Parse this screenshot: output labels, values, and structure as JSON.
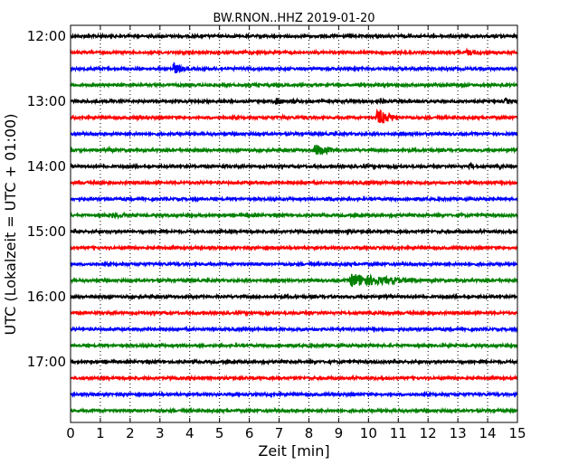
{
  "chart_data": {
    "type": "line",
    "title": "BW.RNON..HHZ 2019-01-20",
    "xlabel": "Zeit  [min]",
    "ylabel": "UTC (Lokalzeit = UTC + 01:00)",
    "xlim": [
      0,
      15
    ],
    "x_ticks": [
      "0",
      "1",
      "2",
      "3",
      "4",
      "5",
      "6",
      "7",
      "8",
      "9",
      "10",
      "11",
      "12",
      "13",
      "14",
      "15"
    ],
    "y_ticks": [
      "12:00",
      "13:00",
      "14:00",
      "15:00",
      "16:00",
      "17:00"
    ],
    "grid": "vertical dotted",
    "colors": [
      "#000000",
      "#ff0000",
      "#0000ff",
      "#008000"
    ],
    "series": [
      {
        "start": "12:00",
        "color": "#000000",
        "events": []
      },
      {
        "start": "12:15",
        "color": "#ff0000",
        "events": [
          {
            "t": 13.3,
            "amp": 3.5,
            "width": 0.6
          }
        ]
      },
      {
        "start": "12:30",
        "color": "#0000ff",
        "events": [
          {
            "t": 3.45,
            "amp": 8,
            "width": 0.25
          }
        ]
      },
      {
        "start": "12:45",
        "color": "#008000",
        "events": [
          {
            "t": 1.4,
            "amp": 2.5,
            "width": 0.3
          },
          {
            "t": 3.9,
            "amp": 2,
            "width": 0.3
          }
        ]
      },
      {
        "start": "13:00",
        "color": "#000000",
        "events": [
          {
            "t": 6.9,
            "amp": 5,
            "width": 0.3
          },
          {
            "t": 7.5,
            "amp": 3,
            "width": 0.3
          },
          {
            "t": 10.4,
            "amp": 3.5,
            "width": 0.3
          },
          {
            "t": 14.6,
            "amp": 4,
            "width": 0.2
          }
        ]
      },
      {
        "start": "13:15",
        "color": "#ff0000",
        "events": [
          {
            "t": 2.2,
            "amp": 3,
            "width": 0.2
          },
          {
            "t": 7.1,
            "amp": 3,
            "width": 0.3
          },
          {
            "t": 7.8,
            "amp": 3,
            "width": 0.2
          },
          {
            "t": 10.3,
            "amp": 10,
            "width": 0.45
          }
        ]
      },
      {
        "start": "13:30",
        "color": "#0000ff",
        "events": []
      },
      {
        "start": "13:45",
        "color": "#008000",
        "events": [
          {
            "t": 1.3,
            "amp": 3,
            "width": 0.2
          },
          {
            "t": 8.2,
            "amp": 7,
            "width": 0.6
          }
        ]
      },
      {
        "start": "14:00",
        "color": "#000000",
        "events": [
          {
            "t": 5.1,
            "amp": 2.5,
            "width": 0.3
          },
          {
            "t": 13.4,
            "amp": 4,
            "width": 0.2
          },
          {
            "t": 14.4,
            "amp": 3,
            "width": 0.2
          }
        ]
      },
      {
        "start": "14:15",
        "color": "#ff0000",
        "events": [
          {
            "t": 13.3,
            "amp": 3,
            "width": 0.5
          }
        ]
      },
      {
        "start": "14:30",
        "color": "#0000ff",
        "events": [
          {
            "t": 8.6,
            "amp": 3,
            "width": 0.6
          }
        ]
      },
      {
        "start": "14:45",
        "color": "#008000",
        "events": [
          {
            "t": 1.4,
            "amp": 3,
            "width": 1.2
          },
          {
            "t": 5.9,
            "amp": 3,
            "width": 0.3
          },
          {
            "t": 13.0,
            "amp": 2.5,
            "width": 0.3
          }
        ]
      },
      {
        "start": "15:00",
        "color": "#000000",
        "events": [
          {
            "t": 9.3,
            "amp": 3,
            "width": 0.2
          }
        ]
      },
      {
        "start": "15:15",
        "color": "#ff0000",
        "events": []
      },
      {
        "start": "15:30",
        "color": "#0000ff",
        "events": []
      },
      {
        "start": "15:45",
        "color": "#008000",
        "events": [
          {
            "t": 9.4,
            "amp": 8,
            "width": 1.6
          }
        ]
      },
      {
        "start": "16:00",
        "color": "#000000",
        "events": []
      },
      {
        "start": "16:15",
        "color": "#ff0000",
        "events": []
      },
      {
        "start": "16:30",
        "color": "#0000ff",
        "events": []
      },
      {
        "start": "16:45",
        "color": "#008000",
        "events": []
      },
      {
        "start": "17:00",
        "color": "#000000",
        "events": [
          {
            "t": 4.1,
            "amp": 2,
            "width": 0.2
          }
        ]
      },
      {
        "start": "17:15",
        "color": "#ff0000",
        "events": []
      },
      {
        "start": "17:30",
        "color": "#0000ff",
        "events": []
      },
      {
        "start": "17:45",
        "color": "#008000",
        "events": []
      }
    ]
  }
}
